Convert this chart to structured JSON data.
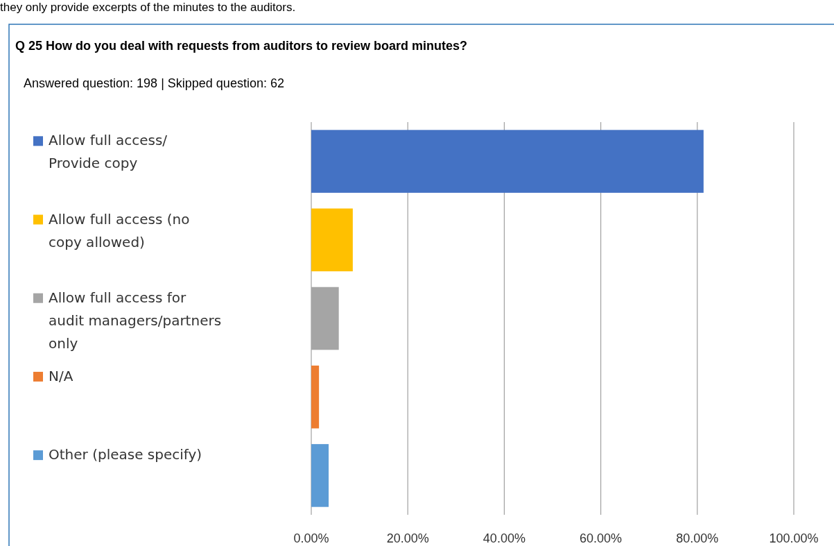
{
  "chart_data": {
    "type": "bar",
    "orientation": "horizontal",
    "title": "Q 25 How do you deal with requests from auditors to review board minutes?",
    "subtitle": "Answered question: 198 | Skipped question: 62",
    "annotations": [
      "they only provide excerpts of the minutes to the auditors."
    ],
    "categories": [
      "Allow full access/ Provide copy",
      "Allow full access (no copy allowed)",
      "Allow full access for audit managers/partners only",
      "N/A",
      "Other (please specify)"
    ],
    "values": [
      81.3,
      8.6,
      5.7,
      1.6,
      3.6
    ],
    "colors": [
      "#4472c4",
      "#ffc000",
      "#a5a5a5",
      "#ed7d31",
      "#5b9bd5"
    ],
    "xlim": [
      0,
      100
    ],
    "xticks": [
      {
        "value": 0,
        "label": "0.00%"
      },
      {
        "value": 20,
        "label": "20.00%"
      },
      {
        "value": 40,
        "label": "40.00%"
      },
      {
        "value": 60,
        "label": "60.00%"
      },
      {
        "value": 80,
        "label": "80.00%"
      },
      {
        "value": 100,
        "label": "100.00%"
      }
    ],
    "grid": "x"
  }
}
